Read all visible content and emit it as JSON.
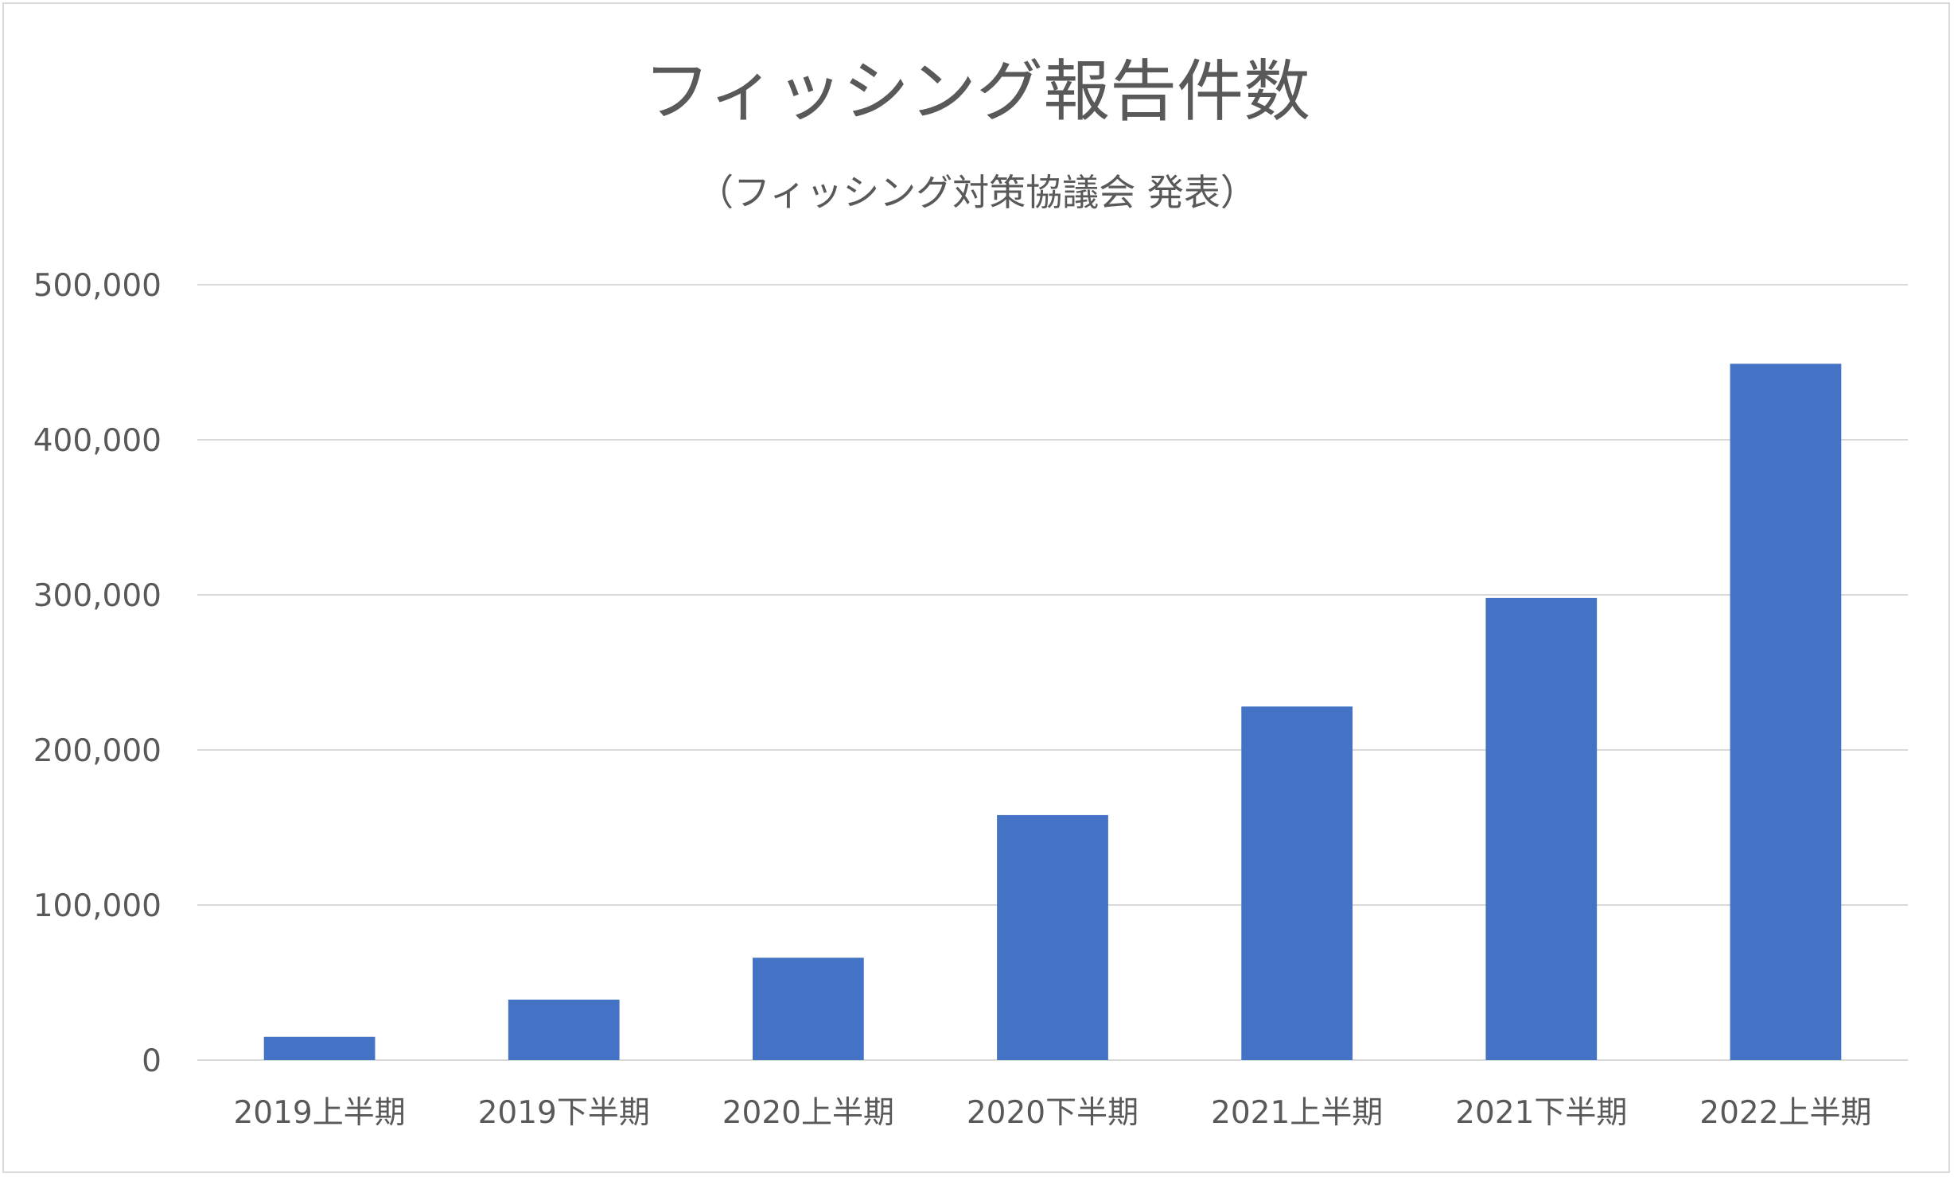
{
  "chart_data": {
    "type": "bar",
    "title": "フィッシング報告件数",
    "subtitle": "（フィッシング対策協議会 発表）",
    "categories": [
      "2019上半期",
      "2019下半期",
      "2020上半期",
      "2020下半期",
      "2021上半期",
      "2021下半期",
      "2022上半期"
    ],
    "series": [
      {
        "values": [
          15000,
          39000,
          66000,
          158000,
          228000,
          298000,
          449000
        ]
      }
    ],
    "ylim": [
      0,
      500000
    ],
    "yticks": [
      0,
      100000,
      200000,
      300000,
      400000,
      500000
    ],
    "ytick_labels": [
      "0",
      "100,000",
      "200,000",
      "300,000",
      "400,000",
      "500,000"
    ],
    "grid": true,
    "legend": "none",
    "bar_color": "#4472c4",
    "xlabel": "",
    "ylabel": ""
  }
}
